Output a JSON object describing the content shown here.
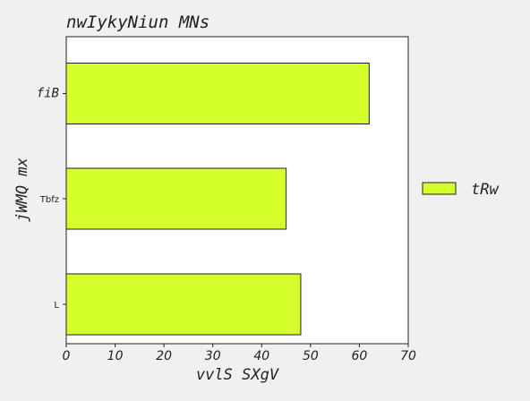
{
  "chart_data": {
    "type": "bar",
    "orientation": "horizontal",
    "title": "nwIykyNiun MNs",
    "xlabel": "vvlS SXgV",
    "ylabel": "jWMQ mx",
    "categories": [
      "fiB",
      "Tbfz",
      "L"
    ],
    "series": [
      {
        "name": "tRw",
        "values": [
          62,
          45,
          48
        ],
        "color": "#d4ff2a"
      }
    ],
    "xlim": [
      0,
      70
    ],
    "xticks": [
      "0",
      "10",
      "20",
      "30",
      "40",
      "50",
      "60",
      "70"
    ],
    "grid": false,
    "legend_position": "right"
  }
}
